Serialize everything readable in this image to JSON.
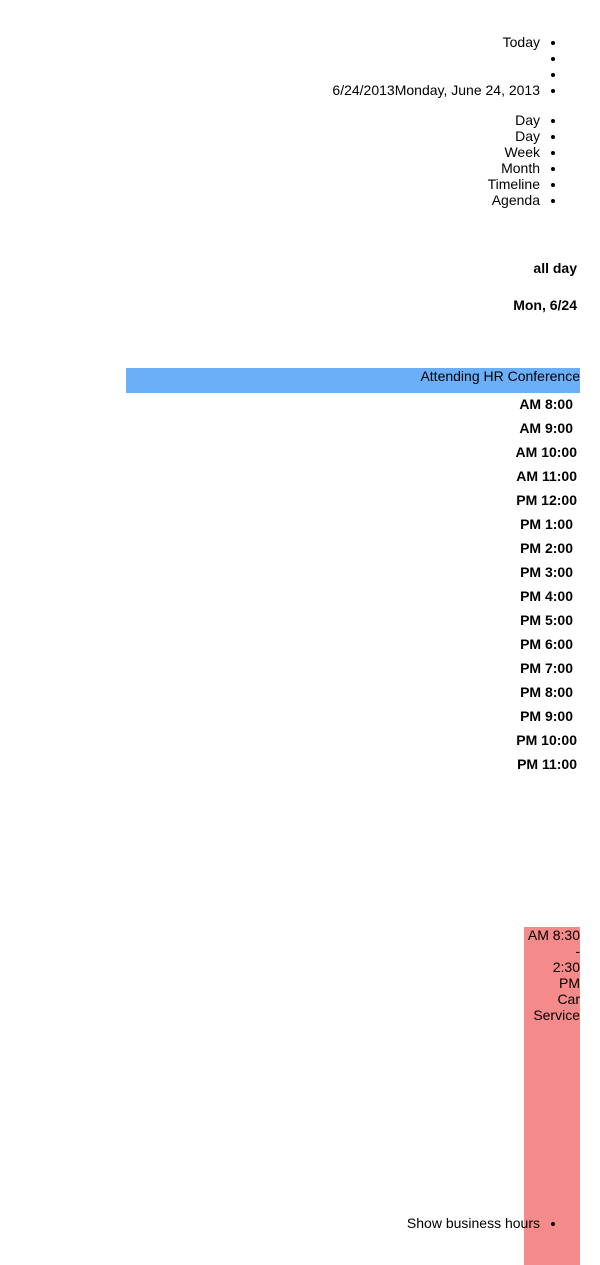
{
  "nav": {
    "today": "Today",
    "prev": "",
    "next": "",
    "date_short": "6/24/2013",
    "date_long": "Monday, June 24, 2013"
  },
  "views": [
    {
      "label": "Day"
    },
    {
      "label": "Day"
    },
    {
      "label": "Week"
    },
    {
      "label": "Month"
    },
    {
      "label": "Timeline"
    },
    {
      "label": "Agenda"
    }
  ],
  "calendar": {
    "all_day_label": "all day",
    "day_header": "Mon, 6/24",
    "all_day_event": {
      "title": "Attending HR Conference",
      "color": "#6aaff8"
    },
    "times": [
      "AM 8:00",
      "AM 9:00",
      "AM 10:00",
      "AM 11:00",
      "PM 12:00",
      "PM 1:00",
      "PM 2:00",
      "PM 3:00",
      "PM 4:00",
      "PM 5:00",
      "PM 6:00",
      "PM 7:00",
      "PM 8:00",
      "PM 9:00",
      "PM 10:00",
      "PM 11:00"
    ],
    "timed_event": {
      "start": "AM 8:30",
      "separator": "-",
      "end": "2:30",
      "end_period": "PM",
      "title_line1": "Car",
      "title_line2": "Service",
      "color": "#f48a89"
    }
  },
  "footer": {
    "business_hours": "Show business hours"
  }
}
